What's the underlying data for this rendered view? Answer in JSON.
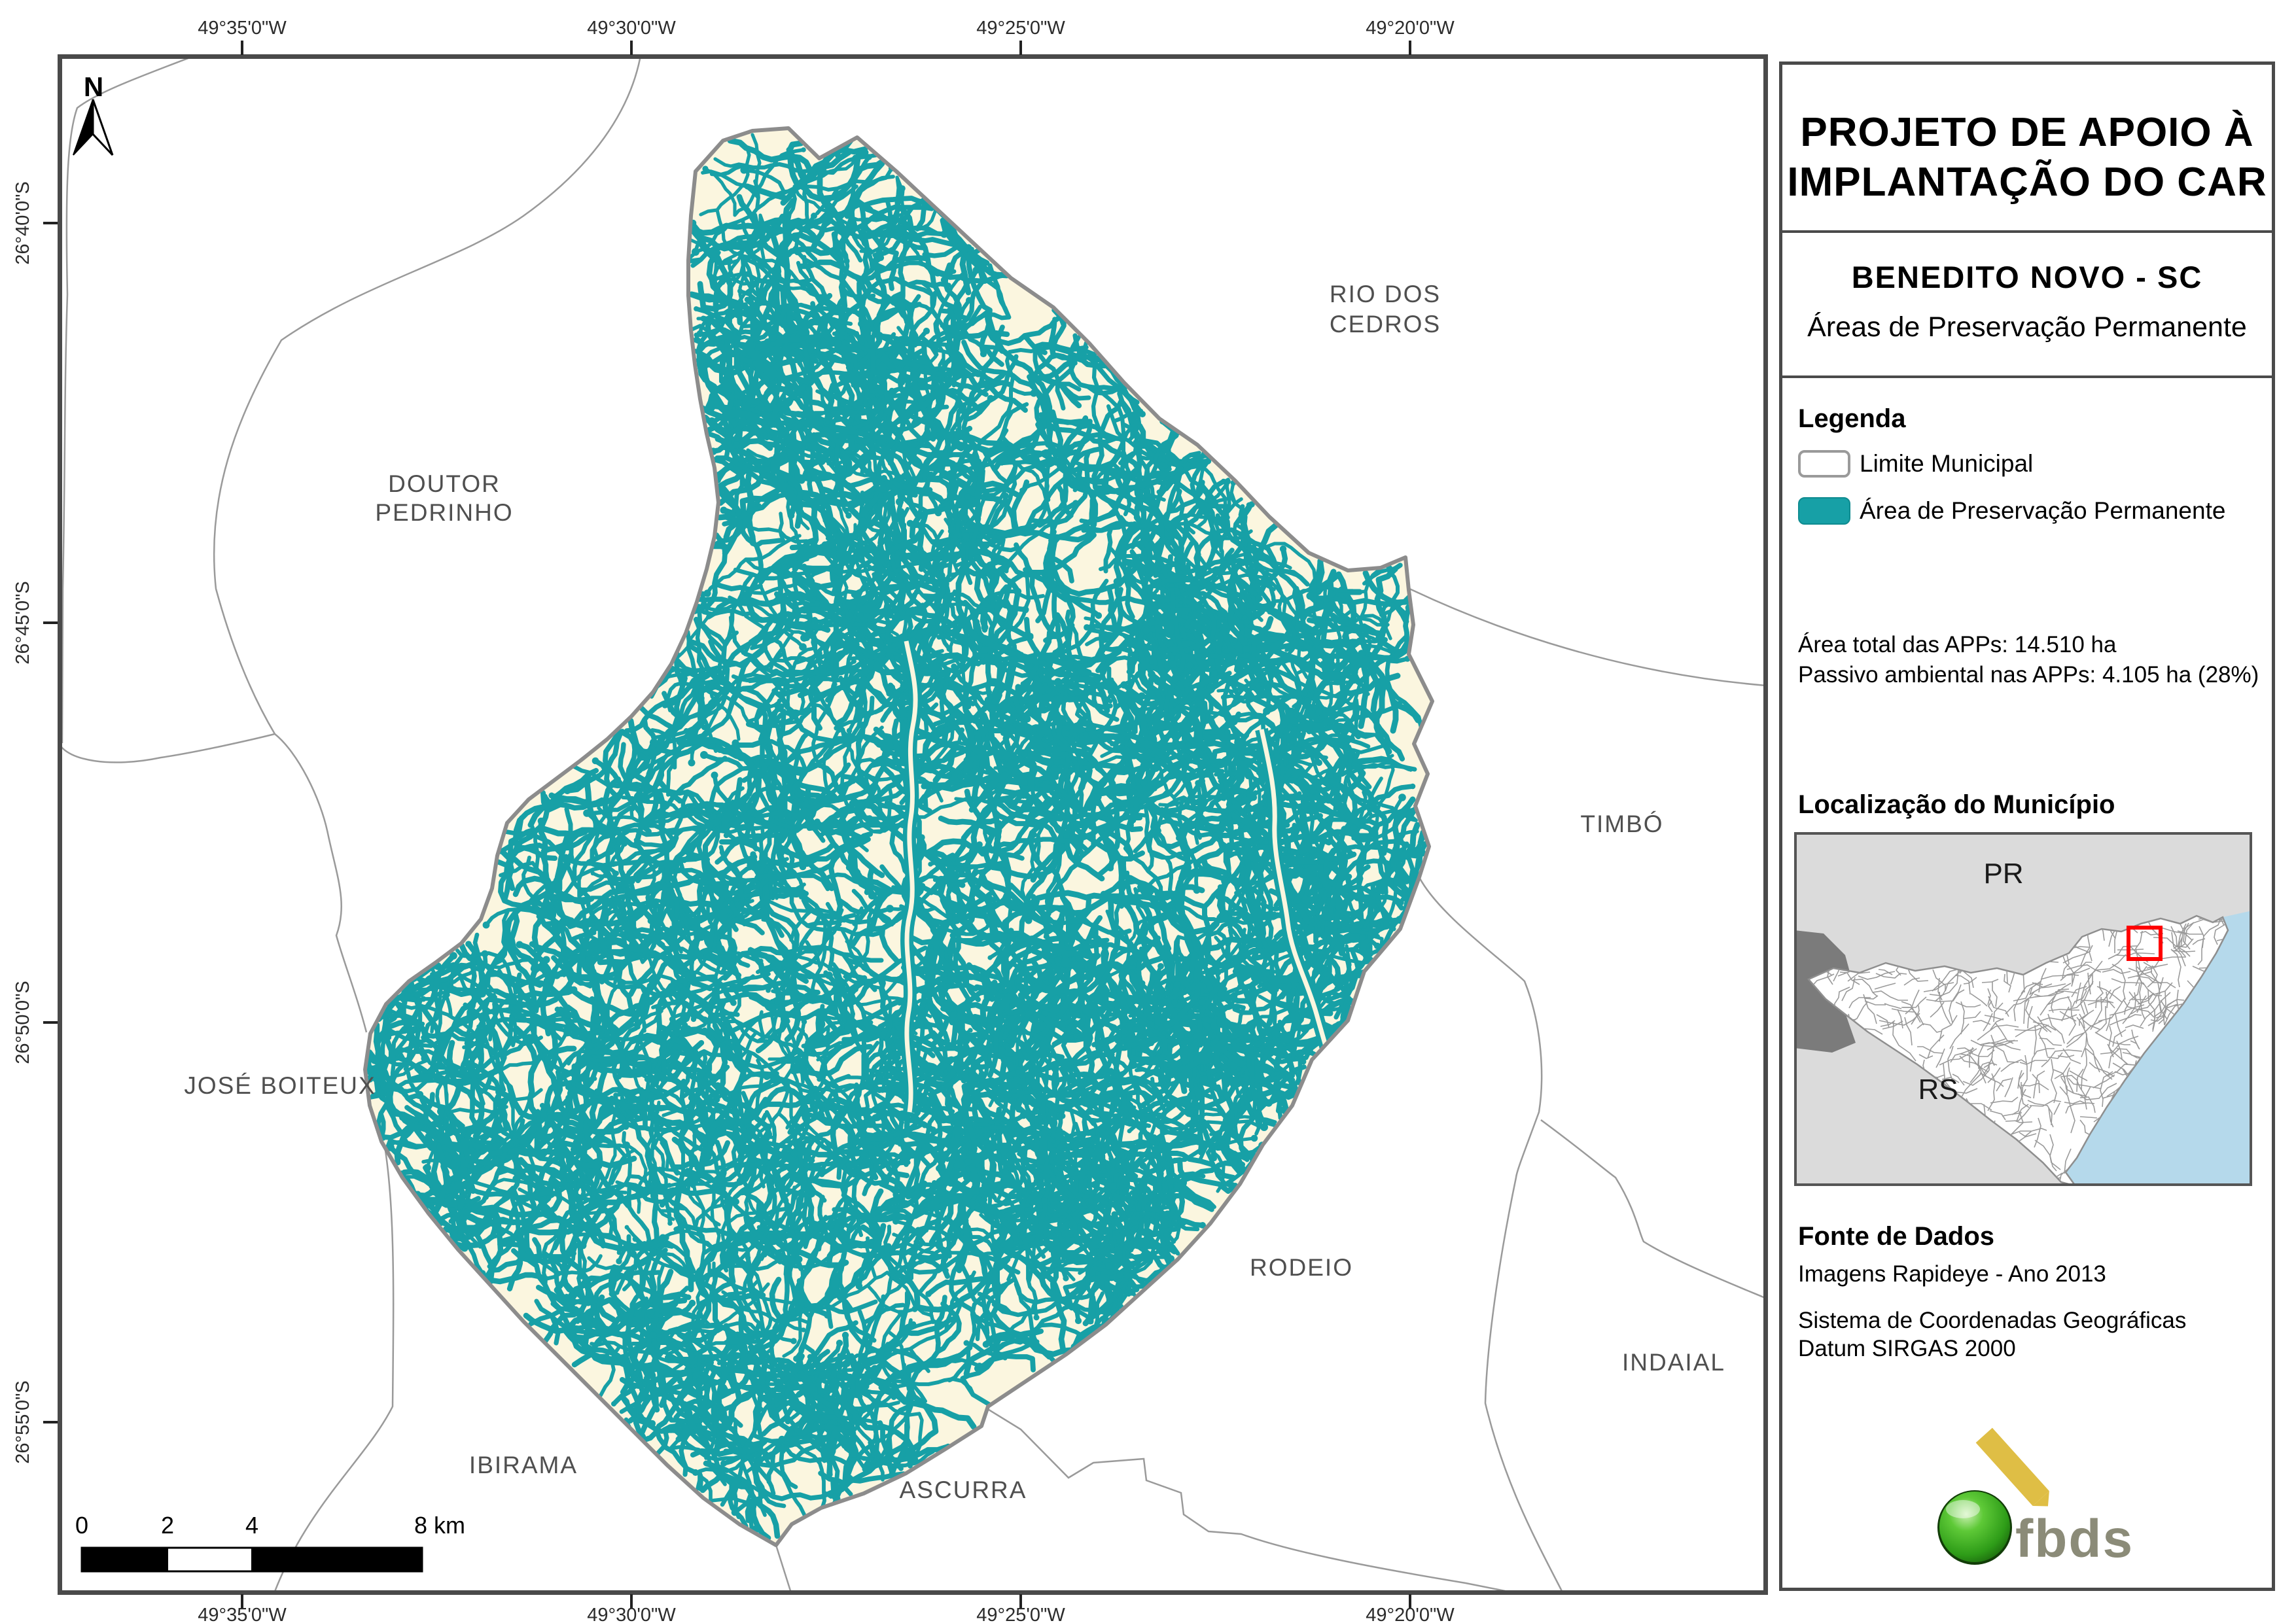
{
  "header": {
    "title_line1": "PROJETO DE APOIO À",
    "title_line2": "IMPLANTAÇÃO DO CAR",
    "municipality": "BENEDITO NOVO - SC",
    "map_theme": "Áreas de Preservação Permanente"
  },
  "legend": {
    "heading": "Legenda",
    "items": [
      {
        "label": "Limite Municipal"
      },
      {
        "label": "Área de Preservação Permanente"
      }
    ],
    "total_line": "Área total das APPs: 14.510 ha",
    "passivo_line": "Passivo ambiental nas APPs: 4.105 ha (28%)"
  },
  "location": {
    "heading": "Localização do Município",
    "state_label_north": "PR",
    "state_label_south": "RS"
  },
  "source": {
    "heading": "Fonte de Dados",
    "line1": "Imagens Rapideye - Ano 2013",
    "line2": "Sistema de Coordenadas Geográficas",
    "line3": "Datum SIRGAS 2000"
  },
  "logo": {
    "text": "fbds"
  },
  "map": {
    "north_label": "N",
    "labels": [
      "RIO DOS",
      "CEDROS",
      "DOUTOR",
      "PEDRINHO",
      "TIMBÓ",
      "JOSÉ BOITEUX",
      "RODEIO",
      "INDAIAL",
      "IBIRAMA",
      "ASCURRA"
    ],
    "lon_ticks": [
      "49°35'0\"W",
      "49°30'0\"W",
      "49°25'0\"W",
      "49°20'0\"W"
    ],
    "lat_ticks": [
      "26°40'0\"S",
      "26°45'0\"S",
      "26°50'0\"S",
      "26°55'0\"S"
    ]
  },
  "scalebar": {
    "labels": [
      "0",
      "2",
      "4",
      "8 km"
    ]
  },
  "colors": {
    "app": "#17A0A6",
    "municipality_fill": "#FBF6DF",
    "municipality_border": "#8c8c8c",
    "neighbor_boundary": "#9a9a9a",
    "frame": "#4a4a4a",
    "red_box": "#FF0000",
    "ocean": "#B5D9EB"
  }
}
